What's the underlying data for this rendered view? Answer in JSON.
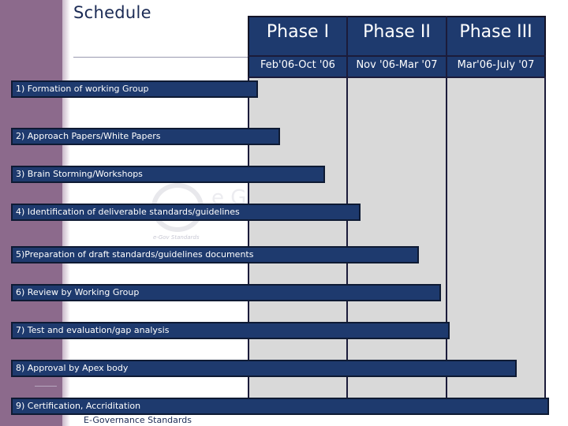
{
  "slide": {
    "title": "Schedule",
    "footer": "E-Governance Standards"
  },
  "watermark": {
    "logo_text": "e G",
    "sub_text": "e-Gov Standards"
  },
  "phases": [
    {
      "label": "Phase I",
      "period": "Feb'06-Oct '06"
    },
    {
      "label": "Phase II",
      "period": "Nov '06-Mar '07"
    },
    {
      "label": "Phase III",
      "period": "Mar'06-July '07"
    }
  ],
  "tasks": [
    "1) Formation of working Group",
    "2) Approach Papers/White Papers",
    "3) Brain Storming/Workshops",
    "4)   Identification of deliverable standards/guidelines",
    "5)Preparation of draft standards/guidelines documents",
    "6) Review by Working Group",
    "7) Test and evaluation/gap analysis",
    "8) Approval by Apex body",
    "9) Certification, Accriditation"
  ],
  "colors": {
    "bar": "#1e3a6e",
    "sidebar": "#8c6a8c",
    "grid": "#d9d9d9"
  }
}
